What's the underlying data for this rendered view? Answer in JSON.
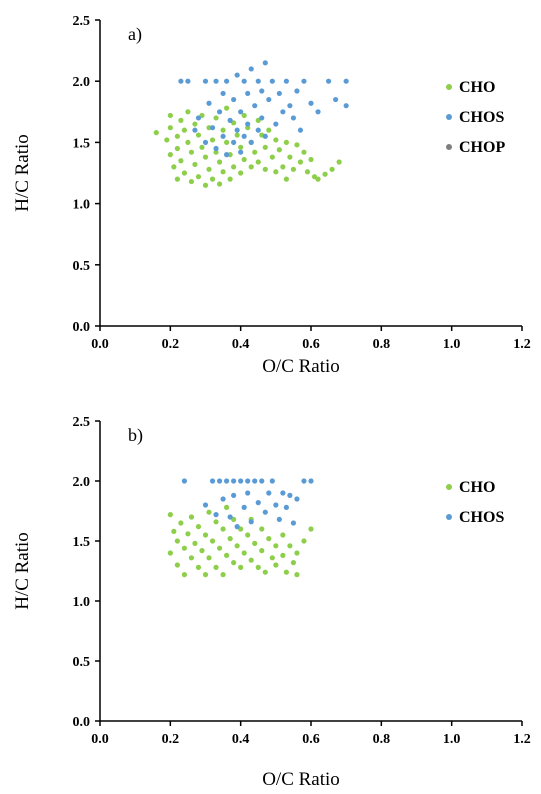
{
  "chart_data": [
    {
      "type": "scatter",
      "panel_label": "a)",
      "xlabel": "O/C Ratio",
      "ylabel": "H/C Ratio",
      "xlim": [
        0.0,
        1.2
      ],
      "ylim": [
        0.0,
        2.5
      ],
      "xticks": [
        "0.0",
        "0.2",
        "0.4",
        "0.6",
        "0.8",
        "1.0",
        "1.2"
      ],
      "yticks": [
        "0.0",
        "0.5",
        "1.0",
        "1.5",
        "2.0",
        "2.5"
      ],
      "grid": false,
      "legend_position": "right",
      "series": [
        {
          "name": "CHO",
          "color": "#8dcf4a",
          "points": [
            [
              0.16,
              1.58
            ],
            [
              0.19,
              1.52
            ],
            [
              0.2,
              1.72
            ],
            [
              0.2,
              1.62
            ],
            [
              0.2,
              1.4
            ],
            [
              0.21,
              1.3
            ],
            [
              0.22,
              1.55
            ],
            [
              0.22,
              1.45
            ],
            [
              0.22,
              1.2
            ],
            [
              0.23,
              1.68
            ],
            [
              0.23,
              1.35
            ],
            [
              0.24,
              1.6
            ],
            [
              0.24,
              1.25
            ],
            [
              0.25,
              1.75
            ],
            [
              0.25,
              1.5
            ],
            [
              0.26,
              1.42
            ],
            [
              0.26,
              1.18
            ],
            [
              0.27,
              1.65
            ],
            [
              0.27,
              1.32
            ],
            [
              0.28,
              1.56
            ],
            [
              0.28,
              1.22
            ],
            [
              0.29,
              1.72
            ],
            [
              0.29,
              1.46
            ],
            [
              0.3,
              1.38
            ],
            [
              0.3,
              1.15
            ],
            [
              0.31,
              1.62
            ],
            [
              0.31,
              1.28
            ],
            [
              0.32,
              1.52
            ],
            [
              0.32,
              1.2
            ],
            [
              0.33,
              1.7
            ],
            [
              0.33,
              1.42
            ],
            [
              0.34,
              1.34
            ],
            [
              0.34,
              1.16
            ],
            [
              0.35,
              1.6
            ],
            [
              0.35,
              1.26
            ],
            [
              0.36,
              1.5
            ],
            [
              0.36,
              1.78
            ],
            [
              0.37,
              1.4
            ],
            [
              0.37,
              1.2
            ],
            [
              0.38,
              1.66
            ],
            [
              0.38,
              1.3
            ],
            [
              0.39,
              1.56
            ],
            [
              0.4,
              1.46
            ],
            [
              0.4,
              1.25
            ],
            [
              0.41,
              1.72
            ],
            [
              0.41,
              1.36
            ],
            [
              0.42,
              1.62
            ],
            [
              0.43,
              1.5
            ],
            [
              0.43,
              1.3
            ],
            [
              0.44,
              1.42
            ],
            [
              0.45,
              1.68
            ],
            [
              0.45,
              1.34
            ],
            [
              0.46,
              1.56
            ],
            [
              0.47,
              1.46
            ],
            [
              0.47,
              1.28
            ],
            [
              0.48,
              1.6
            ],
            [
              0.49,
              1.38
            ],
            [
              0.5,
              1.52
            ],
            [
              0.5,
              1.26
            ],
            [
              0.51,
              1.44
            ],
            [
              0.52,
              1.3
            ],
            [
              0.53,
              1.5
            ],
            [
              0.53,
              1.2
            ],
            [
              0.54,
              1.38
            ],
            [
              0.55,
              1.28
            ],
            [
              0.56,
              1.48
            ],
            [
              0.57,
              1.34
            ],
            [
              0.58,
              1.42
            ],
            [
              0.59,
              1.26
            ],
            [
              0.6,
              1.36
            ],
            [
              0.61,
              1.22
            ],
            [
              0.62,
              1.2
            ],
            [
              0.64,
              1.24
            ],
            [
              0.66,
              1.28
            ],
            [
              0.68,
              1.34
            ]
          ]
        },
        {
          "name": "CHOS",
          "color": "#5b9bd5",
          "points": [
            [
              0.23,
              2.0
            ],
            [
              0.25,
              2.0
            ],
            [
              0.27,
              1.6
            ],
            [
              0.28,
              1.7
            ],
            [
              0.3,
              2.0
            ],
            [
              0.3,
              1.5
            ],
            [
              0.31,
              1.82
            ],
            [
              0.32,
              1.62
            ],
            [
              0.33,
              2.0
            ],
            [
              0.33,
              1.45
            ],
            [
              0.34,
              1.75
            ],
            [
              0.35,
              1.9
            ],
            [
              0.35,
              1.55
            ],
            [
              0.36,
              2.0
            ],
            [
              0.36,
              1.4
            ],
            [
              0.37,
              1.68
            ],
            [
              0.38,
              1.85
            ],
            [
              0.38,
              1.5
            ],
            [
              0.39,
              2.05
            ],
            [
              0.39,
              1.6
            ],
            [
              0.4,
              1.75
            ],
            [
              0.4,
              1.42
            ],
            [
              0.41,
              2.0
            ],
            [
              0.41,
              1.55
            ],
            [
              0.42,
              1.9
            ],
            [
              0.42,
              1.65
            ],
            [
              0.43,
              2.1
            ],
            [
              0.43,
              1.5
            ],
            [
              0.44,
              1.8
            ],
            [
              0.45,
              2.0
            ],
            [
              0.45,
              1.6
            ],
            [
              0.46,
              1.92
            ],
            [
              0.46,
              1.7
            ],
            [
              0.47,
              2.15
            ],
            [
              0.47,
              1.55
            ],
            [
              0.48,
              1.85
            ],
            [
              0.49,
              2.0
            ],
            [
              0.5,
              1.65
            ],
            [
              0.51,
              1.9
            ],
            [
              0.52,
              1.75
            ],
            [
              0.53,
              2.0
            ],
            [
              0.54,
              1.8
            ],
            [
              0.55,
              1.7
            ],
            [
              0.56,
              1.92
            ],
            [
              0.57,
              1.6
            ],
            [
              0.58,
              2.0
            ],
            [
              0.6,
              1.82
            ],
            [
              0.62,
              1.75
            ],
            [
              0.65,
              2.0
            ],
            [
              0.67,
              1.85
            ],
            [
              0.7,
              2.0
            ],
            [
              0.7,
              1.8
            ]
          ]
        },
        {
          "name": "CHOP",
          "color": "#7f7f7f",
          "points": []
        }
      ]
    },
    {
      "type": "scatter",
      "panel_label": "b)",
      "xlabel": "O/C Ratio",
      "ylabel": "H/C Ratio",
      "xlim": [
        0.0,
        1.2
      ],
      "ylim": [
        0.0,
        2.5
      ],
      "xticks": [
        "0.0",
        "0.2",
        "0.4",
        "0.6",
        "0.8",
        "1.0",
        "1.2"
      ],
      "yticks": [
        "0.0",
        "0.5",
        "1.0",
        "1.5",
        "2.0",
        "2.5"
      ],
      "grid": false,
      "legend_position": "right",
      "series": [
        {
          "name": "CHO",
          "color": "#8dcf4a",
          "points": [
            [
              0.2,
              1.72
            ],
            [
              0.2,
              1.4
            ],
            [
              0.21,
              1.58
            ],
            [
              0.22,
              1.5
            ],
            [
              0.22,
              1.3
            ],
            [
              0.23,
              1.65
            ],
            [
              0.24,
              1.44
            ],
            [
              0.24,
              1.22
            ],
            [
              0.25,
              1.56
            ],
            [
              0.26,
              1.36
            ],
            [
              0.26,
              1.7
            ],
            [
              0.27,
              1.48
            ],
            [
              0.28,
              1.28
            ],
            [
              0.28,
              1.62
            ],
            [
              0.29,
              1.42
            ],
            [
              0.3,
              1.55
            ],
            [
              0.3,
              1.22
            ],
            [
              0.31,
              1.74
            ],
            [
              0.31,
              1.36
            ],
            [
              0.32,
              1.5
            ],
            [
              0.33,
              1.66
            ],
            [
              0.33,
              1.28
            ],
            [
              0.34,
              1.44
            ],
            [
              0.35,
              1.6
            ],
            [
              0.35,
              1.22
            ],
            [
              0.36,
              1.38
            ],
            [
              0.36,
              1.78
            ],
            [
              0.37,
              1.52
            ],
            [
              0.38,
              1.32
            ],
            [
              0.38,
              1.68
            ],
            [
              0.39,
              1.46
            ],
            [
              0.4,
              1.6
            ],
            [
              0.4,
              1.28
            ],
            [
              0.41,
              1.4
            ],
            [
              0.42,
              1.55
            ],
            [
              0.43,
              1.34
            ],
            [
              0.43,
              1.68
            ],
            [
              0.44,
              1.48
            ],
            [
              0.45,
              1.28
            ],
            [
              0.46,
              1.6
            ],
            [
              0.46,
              1.42
            ],
            [
              0.47,
              1.24
            ],
            [
              0.48,
              1.52
            ],
            [
              0.49,
              1.36
            ],
            [
              0.5,
              1.46
            ],
            [
              0.5,
              1.3
            ],
            [
              0.52,
              1.55
            ],
            [
              0.52,
              1.38
            ],
            [
              0.53,
              1.24
            ],
            [
              0.54,
              1.46
            ],
            [
              0.55,
              1.32
            ],
            [
              0.56,
              1.4
            ],
            [
              0.56,
              1.22
            ],
            [
              0.58,
              1.5
            ],
            [
              0.6,
              1.6
            ]
          ]
        },
        {
          "name": "CHOS",
          "color": "#5b9bd5",
          "points": [
            [
              0.24,
              2.0
            ],
            [
              0.3,
              1.8
            ],
            [
              0.32,
              2.0
            ],
            [
              0.33,
              1.72
            ],
            [
              0.34,
              2.0
            ],
            [
              0.35,
              1.85
            ],
            [
              0.36,
              2.0
            ],
            [
              0.37,
              1.7
            ],
            [
              0.38,
              2.0
            ],
            [
              0.38,
              1.88
            ],
            [
              0.39,
              1.62
            ],
            [
              0.4,
              2.0
            ],
            [
              0.41,
              1.78
            ],
            [
              0.42,
              2.0
            ],
            [
              0.42,
              1.9
            ],
            [
              0.43,
              1.66
            ],
            [
              0.44,
              2.0
            ],
            [
              0.45,
              1.82
            ],
            [
              0.46,
              2.0
            ],
            [
              0.47,
              1.74
            ],
            [
              0.48,
              1.9
            ],
            [
              0.49,
              2.0
            ],
            [
              0.5,
              1.8
            ],
            [
              0.51,
              1.68
            ],
            [
              0.52,
              1.9
            ],
            [
              0.53,
              1.78
            ],
            [
              0.54,
              1.88
            ],
            [
              0.55,
              1.65
            ],
            [
              0.56,
              1.85
            ],
            [
              0.58,
              2.0
            ],
            [
              0.6,
              2.0
            ]
          ]
        }
      ]
    }
  ]
}
